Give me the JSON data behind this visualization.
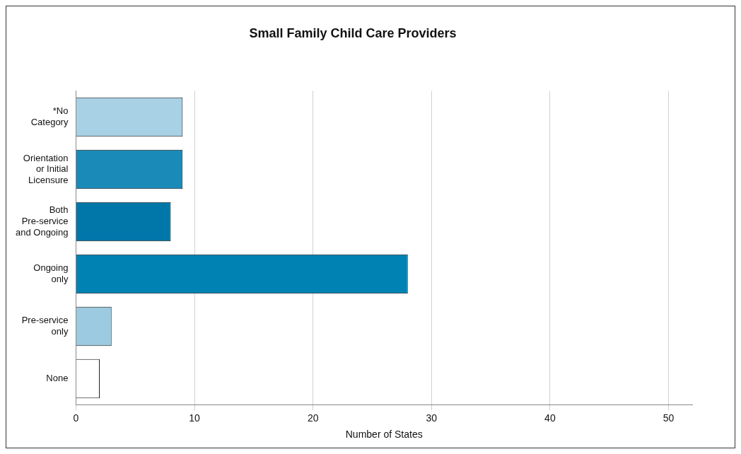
{
  "chart_data": {
    "type": "bar",
    "orientation": "horizontal",
    "title": "Small Family Child Care Providers",
    "xlabel": "Number of States",
    "categories": [
      "*No Category",
      "Orientation or Initial Licensure",
      "Both Pre-service and Ongoing",
      "Ongoing only",
      "Pre-service only",
      "None"
    ],
    "values": [
      9,
      9,
      8,
      28,
      3,
      2
    ],
    "colors": [
      "#a9d1e6",
      "#1a8ab8",
      "#0077a8",
      "#0082b2",
      "#9ccae0",
      "#ffffff"
    ],
    "xlim": [
      0,
      52
    ],
    "xticks": [
      0,
      10,
      20,
      30,
      40,
      50
    ],
    "grid": "x",
    "legend": false
  }
}
